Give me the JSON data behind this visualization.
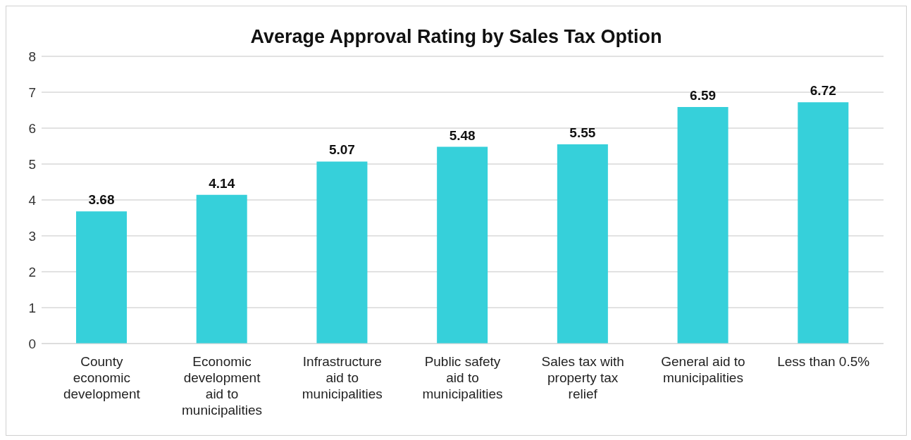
{
  "chart_data": {
    "type": "bar",
    "title": "Average Approval Rating by Sales Tax Option",
    "categories": [
      "County economic development",
      "Economic development aid to municipalities",
      "Infrastructure aid to municipalities",
      "Public safety aid to municipalities",
      "Sales tax with property tax relief",
      "General aid to municipalities",
      "Less than 0.5%"
    ],
    "values": [
      3.68,
      4.14,
      5.07,
      5.48,
      5.55,
      6.59,
      6.72
    ],
    "color": "#36d0da",
    "ylim": [
      0,
      8
    ],
    "yticks": [
      0,
      1,
      2,
      3,
      4,
      5,
      6,
      7,
      8
    ],
    "grid": "y",
    "data_labels": true
  }
}
